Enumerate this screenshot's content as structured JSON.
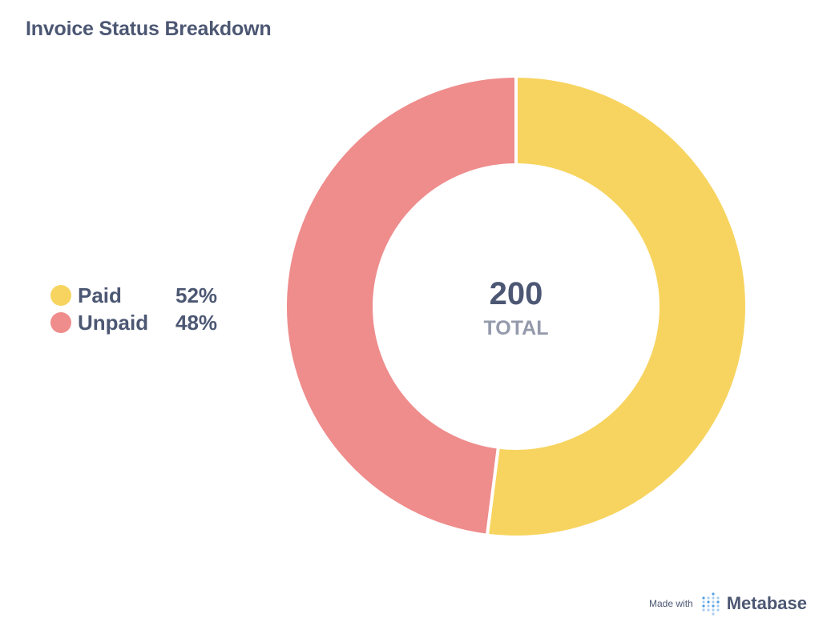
{
  "chart_data": {
    "type": "pie",
    "variant": "donut",
    "title": "Invoice Status Breakdown",
    "categories": [
      "Paid",
      "Unpaid"
    ],
    "values": [
      104,
      96
    ],
    "percent_labels": [
      "52%",
      "48%"
    ],
    "colors": [
      "#F7D45F",
      "#EF8C8C"
    ],
    "total": {
      "value": "200",
      "label": "TOTAL"
    },
    "legend_position": "left"
  },
  "footer": {
    "made_with": "Made with",
    "brand": "Metabase",
    "brand_color": "#509EE3"
  }
}
